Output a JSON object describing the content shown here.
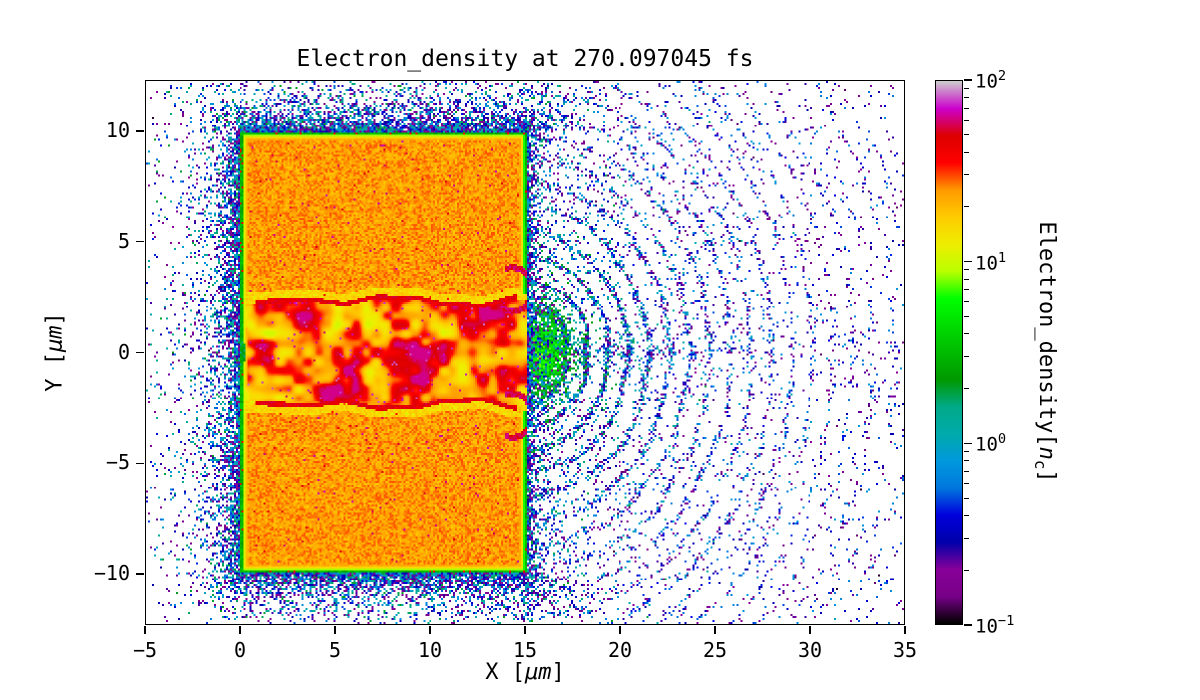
{
  "figure": {
    "background": "#ffffff",
    "text_color": "#000000"
  },
  "chart_data": {
    "type": "heatmap",
    "title": "Electron_density at 270.097045 fs",
    "time_fs": 270.097045,
    "xlabel": "X [μm]",
    "ylabel": "Y [μm]",
    "xlabel_parts": {
      "prefix": "X [",
      "unit": "μm",
      "suffix": "]"
    },
    "ylabel_parts": {
      "prefix": "Y [",
      "unit": "μm",
      "suffix": "]"
    },
    "xlim": [
      -5,
      35
    ],
    "ylim": [
      -12.3,
      12.3
    ],
    "x_ticks": [
      -5,
      0,
      5,
      10,
      15,
      20,
      25,
      30,
      35
    ],
    "y_ticks": [
      -10,
      -5,
      0,
      5,
      10
    ],
    "grid": false,
    "colormap": "nipy_spectral",
    "color_scale": "log",
    "colorbar": {
      "scale": "log",
      "vmin": 0.1,
      "vmax": 100,
      "decades": 3,
      "ticks": [
        {
          "exp": 2
        },
        {
          "exp": 1
        },
        {
          "exp": 0
        },
        {
          "exp": -1
        }
      ],
      "label": "Electron_density[nc]",
      "label_parts": {
        "pre": "Electron_density[",
        "sym": "n",
        "sub": "c",
        "post": "]"
      }
    },
    "features": {
      "target_slab": {
        "x_um": [
          0,
          15
        ],
        "y_um": [
          -10,
          10
        ],
        "typical_density_nc": 25
      },
      "heated_channel": {
        "x_um": [
          0,
          15
        ],
        "y_halfwidth_um": 2.3,
        "density_nc_range": [
          10,
          60
        ]
      },
      "channel_exit_lips": {
        "x_um": 14.5,
        "y_um_abs": [
          1.8,
          3.8
        ],
        "density_nc": 50
      },
      "expansion_wavefronts": {
        "center_um": [
          15,
          0
        ],
        "max_radius_um": 17,
        "spacing_um": 1.08,
        "density_nc_range": [
          0.2,
          4
        ]
      },
      "scattered_halo": {
        "extent_um": 4,
        "density_nc_range": [
          0.1,
          2
        ]
      }
    }
  }
}
